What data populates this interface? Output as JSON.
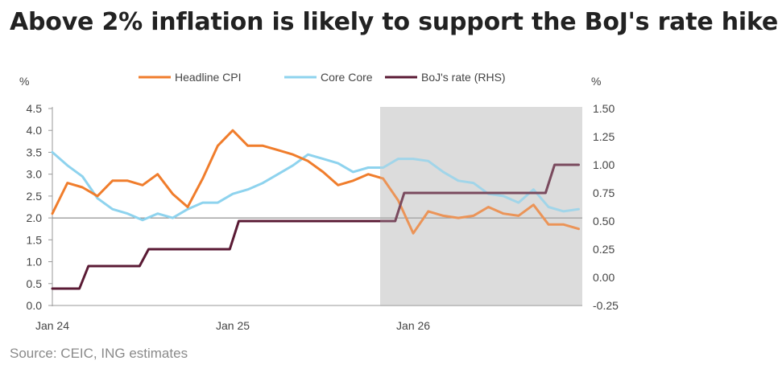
{
  "chart_data": {
    "type": "line",
    "title": "Above 2% inflation is likely to support the BoJ's rate hike",
    "source": "Source: CEIC, ING estimates",
    "ylabel_left": "%",
    "ylabel_right": "%",
    "left_ticks": [
      "0.0",
      "0.5",
      "1.0",
      "1.5",
      "2.0",
      "2.5",
      "3.0",
      "3.5",
      "4.0",
      "4.5"
    ],
    "right_ticks": [
      "-0.25",
      "0.00",
      "0.25",
      "0.50",
      "0.75",
      "1.00",
      "1.25",
      "1.50"
    ],
    "x_ticks": [
      {
        "label": "Jan 24",
        "index": 0
      },
      {
        "label": "Jan 25",
        "index": 12
      },
      {
        "label": "Jan 26",
        "index": 24
      }
    ],
    "ylim_left": [
      0,
      4.5
    ],
    "ylim_right": [
      -0.25,
      1.5
    ],
    "reference_line": 2.0,
    "forecast_shading_start_index": 21.8,
    "legend": [
      "Headline CPI",
      "Core Core",
      "BoJ's rate (RHS)"
    ],
    "colors": {
      "headline": "#f07d2c",
      "core": "#8ed3ee",
      "boj": "#5a1a34",
      "shade": "#dcdcdc"
    },
    "series": [
      {
        "name": "Headline CPI",
        "axis": "left",
        "values": [
          2.1,
          2.8,
          2.7,
          2.5,
          2.85,
          2.85,
          2.75,
          3.0,
          2.55,
          2.25,
          2.9,
          3.65,
          4.0,
          3.65,
          3.65,
          3.55,
          3.45,
          3.3,
          3.05,
          2.75,
          2.85,
          3.0,
          2.9,
          2.4,
          1.65,
          2.15,
          2.05,
          2.0,
          2.05,
          2.25,
          2.1,
          2.05,
          2.3,
          1.85,
          1.85,
          1.75
        ]
      },
      {
        "name": "Core Core",
        "axis": "left",
        "values": [
          3.5,
          3.2,
          2.95,
          2.45,
          2.2,
          2.1,
          1.95,
          2.1,
          2.0,
          2.2,
          2.35,
          2.35,
          2.55,
          2.65,
          2.8,
          3.0,
          3.2,
          3.45,
          3.35,
          3.25,
          3.05,
          3.15,
          3.15,
          3.35,
          3.35,
          3.3,
          3.05,
          2.85,
          2.8,
          2.55,
          2.5,
          2.35,
          2.65,
          2.25,
          2.15,
          2.2
        ]
      },
      {
        "name": "BoJ's rate (RHS)",
        "axis": "right",
        "values": [
          -0.1,
          -0.1,
          0.1,
          0.1,
          0.1,
          0.1,
          0.25,
          0.25,
          0.25,
          0.25,
          0.25,
          0.25,
          0.5,
          0.5,
          0.5,
          0.5,
          0.5,
          0.5,
          0.5,
          0.5,
          0.5,
          0.5,
          0.5,
          0.75,
          0.75,
          0.75,
          0.75,
          0.75,
          0.75,
          0.75,
          0.75,
          0.75,
          0.75,
          1.0,
          1.0,
          1.0
        ]
      }
    ]
  }
}
